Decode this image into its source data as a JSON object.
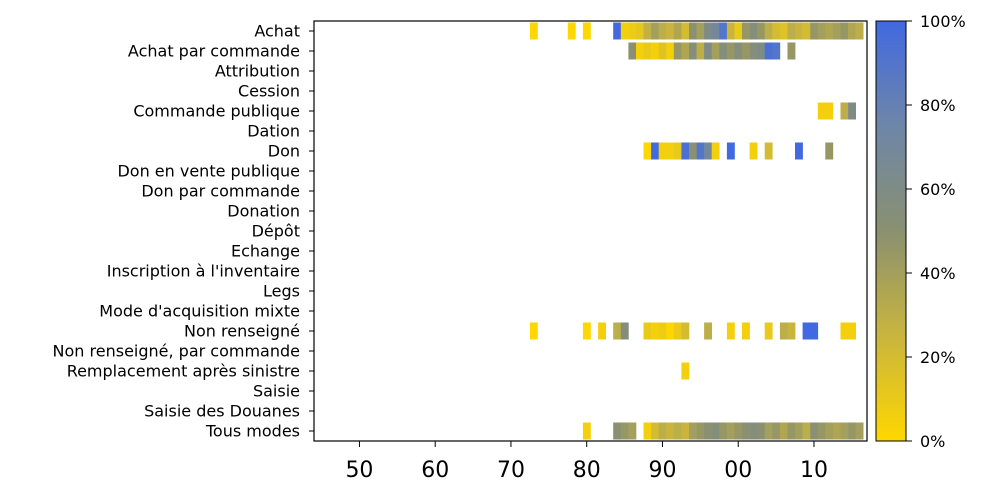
{
  "chart_data": {
    "type": "heatmap",
    "title": "",
    "xlabel": "",
    "ylabel": "",
    "x_tick_labels": [
      "50",
      "60",
      "70",
      "80",
      "90",
      "00",
      "10"
    ],
    "x_tick_years": [
      1950,
      1960,
      1970,
      1980,
      1990,
      2000,
      2010
    ],
    "xlim": [
      1944,
      2017
    ],
    "categories": [
      "Achat",
      "Achat par commande",
      "Attribution",
      "Cession",
      "Commande publique",
      "Dation",
      "Don",
      "Don en vente publique",
      "Don par commande",
      "Donation",
      "Dépôt",
      "Echange",
      "Inscription à l'inventaire",
      "Legs",
      "Mode d'acquisition mixte",
      "Non renseigné",
      "Non renseigné, par commande",
      "Remplacement après sinistre",
      "Saisie",
      "Saisie des Douanes",
      "Tous modes"
    ],
    "colorbar": {
      "ticks": [
        "0%",
        "20%",
        "40%",
        "60%",
        "80%",
        "100%"
      ],
      "colors": [
        "#ffd700",
        "#c9b53e",
        "#8a9070",
        "#6e86a8",
        "#4169e1"
      ]
    },
    "cells": {
      "Achat": [
        [
          1973,
          0
        ],
        [
          1978,
          0
        ],
        [
          1980,
          0
        ],
        [
          1984,
          100
        ],
        [
          1985,
          5
        ],
        [
          1986,
          8
        ],
        [
          1987,
          12
        ],
        [
          1988,
          28
        ],
        [
          1989,
          40
        ],
        [
          1990,
          30
        ],
        [
          1991,
          25
        ],
        [
          1992,
          35
        ],
        [
          1993,
          20
        ],
        [
          1994,
          50
        ],
        [
          1995,
          40
        ],
        [
          1996,
          60
        ],
        [
          1997,
          70
        ],
        [
          1998,
          90
        ],
        [
          1999,
          25
        ],
        [
          2000,
          10
        ],
        [
          2001,
          45
        ],
        [
          2002,
          55
        ],
        [
          2003,
          45
        ],
        [
          2004,
          30
        ],
        [
          2005,
          20
        ],
        [
          2006,
          15
        ],
        [
          2007,
          30
        ],
        [
          2008,
          25
        ],
        [
          2009,
          20
        ],
        [
          2010,
          45
        ],
        [
          2011,
          40
        ],
        [
          2012,
          35
        ],
        [
          2013,
          40
        ],
        [
          2014,
          45
        ],
        [
          2015,
          35
        ],
        [
          2016,
          30
        ]
      ],
      "Achat par commande": [
        [
          1986,
          50
        ],
        [
          1987,
          5
        ],
        [
          1988,
          10
        ],
        [
          1989,
          5
        ],
        [
          1990,
          15
        ],
        [
          1991,
          5
        ],
        [
          1992,
          45
        ],
        [
          1993,
          35
        ],
        [
          1994,
          55
        ],
        [
          1995,
          30
        ],
        [
          1996,
          60
        ],
        [
          1997,
          40
        ],
        [
          1998,
          55
        ],
        [
          1999,
          45
        ],
        [
          2000,
          55
        ],
        [
          2001,
          45
        ],
        [
          2002,
          55
        ],
        [
          2003,
          60
        ],
        [
          2004,
          95
        ],
        [
          2005,
          90
        ],
        [
          2007,
          45
        ]
      ],
      "Commande publique": [
        [
          2011,
          5
        ],
        [
          2012,
          5
        ],
        [
          2014,
          30
        ],
        [
          2015,
          60
        ]
      ],
      "Don": [
        [
          1988,
          0
        ],
        [
          1989,
          100
        ],
        [
          1990,
          5
        ],
        [
          1991,
          5
        ],
        [
          1992,
          10
        ],
        [
          1993,
          95
        ],
        [
          1994,
          50
        ],
        [
          1995,
          90
        ],
        [
          1996,
          70
        ],
        [
          1997,
          5
        ],
        [
          1999,
          100
        ],
        [
          2002,
          5
        ],
        [
          2004,
          20
        ],
        [
          2008,
          100
        ],
        [
          2012,
          45
        ]
      ],
      "Non renseigné": [
        [
          1973,
          0
        ],
        [
          1980,
          0
        ],
        [
          1982,
          5
        ],
        [
          1984,
          30
        ],
        [
          1985,
          55
        ],
        [
          1988,
          10
        ],
        [
          1989,
          5
        ],
        [
          1990,
          8
        ],
        [
          1991,
          0
        ],
        [
          1992,
          10
        ],
        [
          1993,
          20
        ],
        [
          1996,
          30
        ],
        [
          1999,
          5
        ],
        [
          2001,
          5
        ],
        [
          2004,
          10
        ],
        [
          2006,
          30
        ],
        [
          2007,
          25
        ],
        [
          2009,
          100
        ],
        [
          2010,
          100
        ],
        [
          2014,
          5
        ],
        [
          2015,
          5
        ]
      ],
      "Remplacement après sinistre": [
        [
          1993,
          5
        ]
      ],
      "Tous modes": [
        [
          1980,
          5
        ],
        [
          1984,
          50
        ],
        [
          1985,
          45
        ],
        [
          1986,
          40
        ],
        [
          1988,
          5
        ],
        [
          1989,
          20
        ],
        [
          1990,
          30
        ],
        [
          1991,
          25
        ],
        [
          1992,
          30
        ],
        [
          1993,
          25
        ],
        [
          1994,
          40
        ],
        [
          1995,
          45
        ],
        [
          1996,
          50
        ],
        [
          1997,
          55
        ],
        [
          1998,
          45
        ],
        [
          1999,
          40
        ],
        [
          2000,
          45
        ],
        [
          2001,
          50
        ],
        [
          2002,
          55
        ],
        [
          2003,
          50
        ],
        [
          2004,
          40
        ],
        [
          2005,
          45
        ],
        [
          2006,
          35
        ],
        [
          2007,
          45
        ],
        [
          2008,
          40
        ],
        [
          2009,
          30
        ],
        [
          2010,
          50
        ],
        [
          2011,
          45
        ],
        [
          2012,
          40
        ],
        [
          2013,
          35
        ],
        [
          2014,
          40
        ],
        [
          2015,
          45
        ],
        [
          2016,
          40
        ]
      ]
    }
  }
}
